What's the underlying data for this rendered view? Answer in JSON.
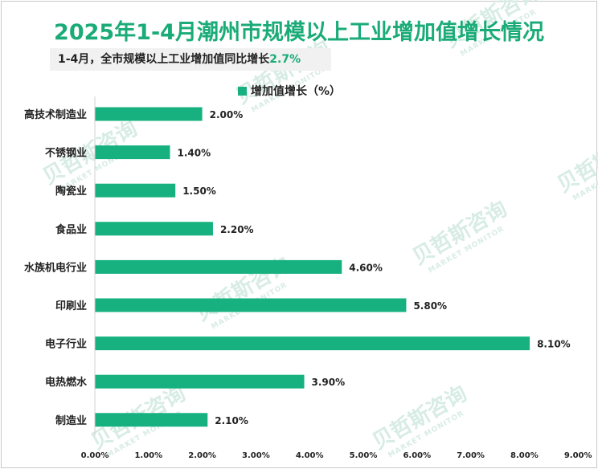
{
  "title": "2025年1-4月潮州市规模以上工业增加值增长情况",
  "subtitle": {
    "text": "1-4月，全市规模以上工业增加值同比增长",
    "highlight": "2.7%"
  },
  "watermark": {
    "text_cn": "贝哲斯咨询",
    "text_en": "MARKET MONITOR"
  },
  "chart_data": {
    "type": "bar",
    "orientation": "horizontal",
    "categories": [
      "高技术制造业",
      "不锈钢业",
      "陶瓷业",
      "食品业",
      "水族机电行业",
      "印刷业",
      "电子行业",
      "电热燃水",
      "制造业"
    ],
    "series": [
      {
        "name": "增加值增长（%）",
        "values": [
          2.0,
          1.4,
          1.5,
          2.2,
          4.6,
          5.8,
          8.1,
          3.9,
          2.1
        ],
        "labels": [
          "2.00%",
          "1.40%",
          "1.50%",
          "2.20%",
          "4.60%",
          "5.80%",
          "8.10%",
          "3.90%",
          "2.10%"
        ]
      }
    ],
    "xlim": [
      0,
      9
    ],
    "x_ticks": [
      "0.00%",
      "1.00%",
      "2.00%",
      "3.00%",
      "4.00%",
      "5.00%",
      "6.00%",
      "7.00%",
      "8.00%",
      "9.00%"
    ],
    "grid": false,
    "legend": "top-center",
    "bar_color": "#16b17f"
  }
}
